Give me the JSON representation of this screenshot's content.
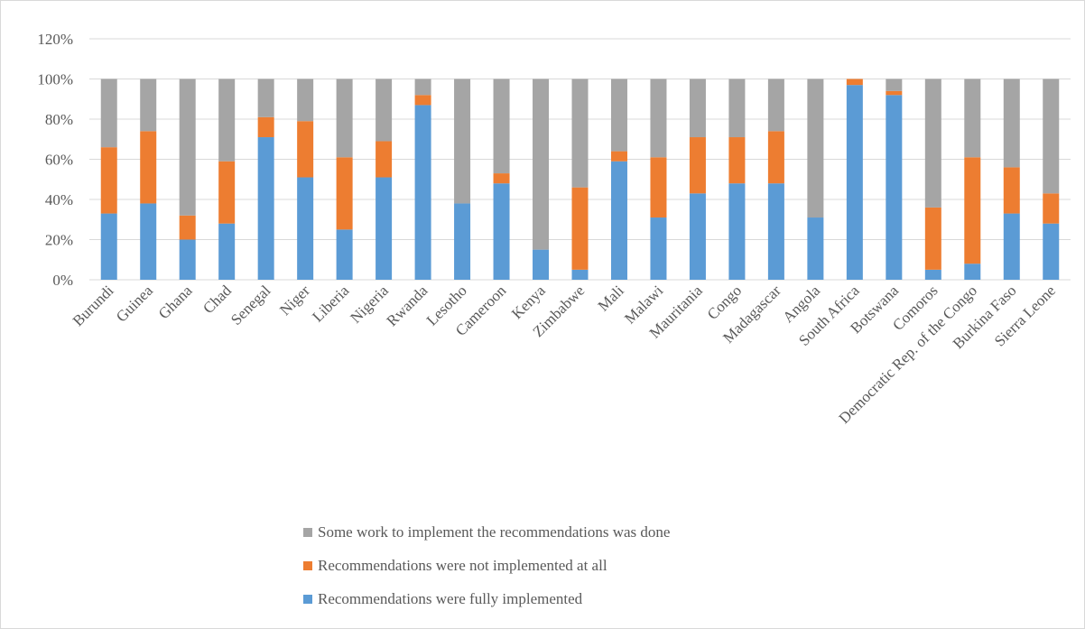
{
  "chart_data": {
    "type": "bar",
    "stacked": true,
    "title": "",
    "xlabel": "",
    "ylabel": "",
    "ylim": [
      0,
      120
    ],
    "y_ticks": [
      "0%",
      "20%",
      "40%",
      "60%",
      "80%",
      "100%",
      "120%"
    ],
    "grid": true,
    "legend_position": "bottom",
    "categories": [
      "Burundi",
      "Guinea",
      "Ghana",
      "Chad",
      "Senegal",
      "Niger",
      "Liberia",
      "Nigeria",
      "Rwanda",
      "Lesotho",
      "Cameroon",
      "Kenya",
      "Zimbabwe",
      "Mali",
      "Malawi",
      "Mauritania",
      "Congo",
      "Madagascar",
      "Angola",
      "South Africa",
      "Botswana",
      "Comoros",
      "Democratic Rep. of the Congo",
      "Burkina Faso",
      "Sierra Leone"
    ],
    "series": [
      {
        "name": "Recommendations were fully implemented",
        "color": "#5b9bd5",
        "values": [
          33,
          38,
          20,
          28,
          71,
          51,
          25,
          51,
          87,
          38,
          48,
          15,
          5,
          59,
          31,
          43,
          48,
          48,
          31,
          97,
          92,
          5,
          8,
          33,
          28
        ]
      },
      {
        "name": "Recommendations were not implemented at all",
        "color": "#ed7d31",
        "values": [
          33,
          36,
          12,
          31,
          10,
          28,
          36,
          18,
          5,
          0,
          5,
          0,
          41,
          5,
          30,
          28,
          23,
          26,
          0,
          3,
          2,
          31,
          53,
          23,
          15
        ]
      },
      {
        "name": "Some work to implement the recommendations was done",
        "color": "#a5a5a5",
        "values": [
          34,
          26,
          68,
          41,
          19,
          21,
          39,
          31,
          8,
          62,
          47,
          85,
          54,
          36,
          39,
          29,
          29,
          26,
          69,
          0,
          6,
          64,
          39,
          44,
          57
        ]
      }
    ],
    "legend_order": [
      "Some work to implement the recommendations was done",
      "Recommendations were not implemented at all",
      "Recommendations were fully implemented"
    ]
  }
}
